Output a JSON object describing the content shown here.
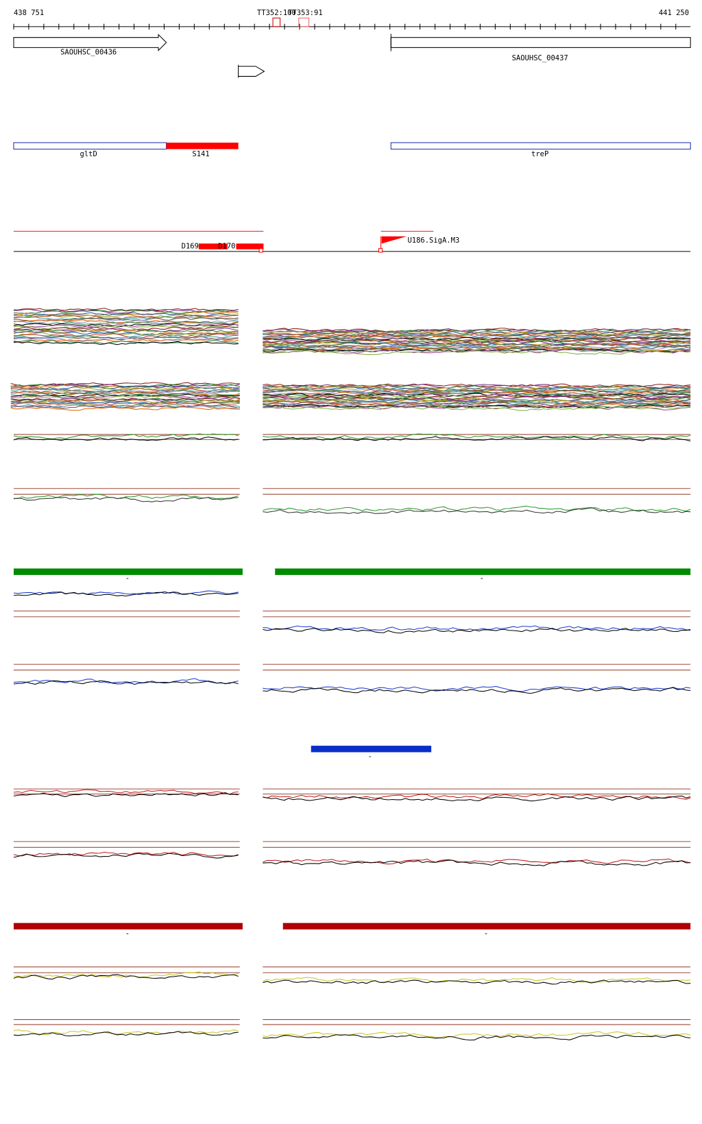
{
  "ruler": {
    "start": "438 751",
    "end": "441 250"
  },
  "terminators": [
    "TT352:100",
    "TT353:91"
  ],
  "genes": [
    "SAOUHSC_00436",
    "SAOUHSC_00437"
  ],
  "features": [
    "gltD",
    "S141",
    "treP"
  ],
  "segments": [
    "D169",
    "D170",
    "U186.SigA.M3"
  ],
  "bar_labels": [
    "-",
    "-",
    "-",
    "-",
    "-"
  ]
}
